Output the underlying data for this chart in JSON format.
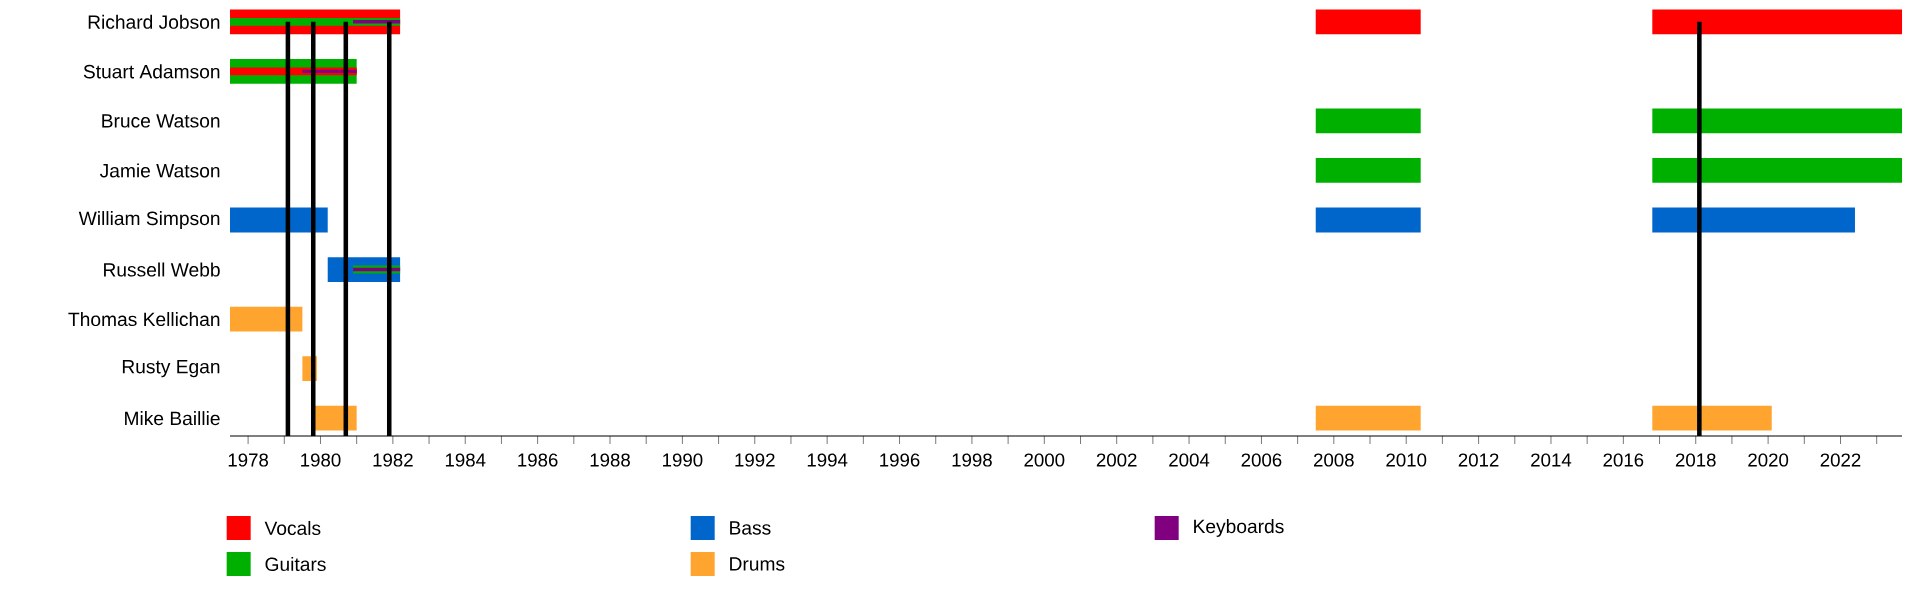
{
  "chart_data": {
    "type": "bar",
    "orientation": "horizontal",
    "legend": "bottom",
    "grid": false,
    "categories": [
      "Richard Jobson",
      "Stuart Adamson",
      "Bruce Watson",
      "Jamie Watson",
      "William Simpson",
      "Russell Webb",
      "Thomas Kellichan",
      "Rusty Egan",
      "Mike Baillie"
    ],
    "xlim": [
      1977.5,
      2023.7
    ],
    "xticks": [
      1978,
      {
        "value": 1979,
        "label": null
      },
      1980,
      {
        "value": 1981,
        "label": null
      },
      1982,
      {
        "value": 1983,
        "label": null
      },
      1984,
      {
        "value": 1985,
        "label": null
      },
      1986,
      {
        "value": 1987,
        "label": null
      },
      1988,
      {
        "value": 1989,
        "label": null
      },
      1990,
      {
        "value": 1991,
        "label": null
      },
      1992,
      {
        "value": 1993,
        "label": null
      },
      1994,
      {
        "value": 1995,
        "label": null
      },
      1996,
      {
        "value": 1997,
        "label": null
      },
      1998,
      {
        "value": 1999,
        "label": null
      },
      2000,
      {
        "value": 2001,
        "label": null
      },
      2002,
      {
        "value": 2003,
        "label": null
      },
      2004,
      {
        "value": 2005,
        "label": null
      },
      2006,
      {
        "value": 2007,
        "label": null
      },
      2008,
      {
        "value": 2009,
        "label": null
      },
      2010,
      {
        "value": 2011,
        "label": null
      },
      2012,
      {
        "value": 2013,
        "label": null
      },
      2014,
      {
        "value": 2015,
        "label": null
      },
      2016,
      {
        "value": 2017,
        "label": null
      },
      2018,
      {
        "value": 2019,
        "label": null
      },
      2020,
      {
        "value": 2021,
        "label": null
      },
      2022,
      {
        "value": 2023,
        "label": null
      }
    ],
    "series": [
      {
        "name": "Vocals",
        "color": "#ff0000",
        "base": [
          1977.5,
          null,
          null,
          null,
          null,
          null,
          null,
          null,
          null
        ],
        "values": [
          4.7,
          null,
          null,
          null,
          null,
          null,
          null,
          null,
          null
        ]
      },
      {
        "name": "Guitars",
        "color": "#00b000",
        "base": [
          null,
          1977.5,
          null,
          null,
          null,
          null,
          null,
          null,
          null
        ],
        "values": [
          null,
          3.5,
          null,
          null,
          null,
          null,
          null,
          null,
          null
        ]
      },
      {
        "name": "Bass",
        "color": "#0066cc",
        "base": [
          null,
          null,
          null,
          null,
          1977.5,
          1980.2,
          null,
          null,
          null
        ],
        "values": [
          null,
          null,
          null,
          null,
          2.7,
          2.0,
          null,
          null,
          null
        ]
      },
      {
        "name": "Drums",
        "color": "#ffa52f",
        "base": [
          null,
          null,
          null,
          null,
          null,
          null,
          1977.5,
          1979.5,
          1979.8
        ],
        "values": [
          null,
          null,
          null,
          null,
          null,
          null,
          2.0,
          0.4,
          1.2
        ]
      },
      {
        "color": "#00b000",
        "base": [
          1977.5,
          null,
          null,
          null,
          null,
          1980.9,
          null,
          null,
          null
        ],
        "values": [
          4.7,
          null,
          null,
          null,
          null,
          1.3,
          null,
          null,
          null
        ]
      },
      {
        "color": "#ff0000",
        "base": [
          null,
          1977.5,
          null,
          null,
          null,
          null,
          null,
          null,
          null
        ],
        "values": [
          null,
          3.5,
          null,
          null,
          null,
          null,
          null,
          null,
          null
        ]
      },
      {
        "name": "Keyboards",
        "color": "#800080",
        "base": [
          1980.9,
          1979.5,
          null,
          null,
          null,
          1980.9,
          null,
          null,
          null
        ],
        "values": [
          1.3,
          1.5,
          null,
          null,
          null,
          1.3,
          null,
          null,
          null
        ]
      },
      {
        "color": "#ff0000",
        "base": [
          2007.5,
          null,
          null,
          null,
          null,
          null,
          null,
          null,
          null
        ],
        "values": [
          2.9,
          null,
          null,
          null,
          null,
          null,
          null,
          null,
          null
        ]
      },
      {
        "color": "#00b000",
        "base": [
          null,
          null,
          2007.5,
          2007.5,
          null,
          null,
          null,
          null,
          null
        ],
        "values": [
          null,
          null,
          2.9,
          2.9,
          null,
          null,
          null,
          null,
          null
        ]
      },
      {
        "color": "#0066cc",
        "base": [
          null,
          null,
          null,
          null,
          2007.5,
          null,
          null,
          null,
          null
        ],
        "values": [
          null,
          null,
          null,
          null,
          2.9,
          null,
          null,
          null,
          null
        ]
      },
      {
        "color": "#ffa52f",
        "base": [
          null,
          null,
          null,
          null,
          null,
          null,
          null,
          null,
          2007.5
        ],
        "values": [
          null,
          null,
          null,
          null,
          null,
          null,
          null,
          null,
          2.9
        ]
      },
      {
        "color": "#ff0000",
        "base": [
          2016.8,
          null,
          null,
          null,
          null,
          null,
          null,
          null,
          null
        ],
        "values": [
          6.9,
          null,
          null,
          null,
          null,
          null,
          null,
          null,
          null
        ]
      },
      {
        "color": "#00b000",
        "base": [
          null,
          null,
          2016.8,
          2016.8,
          null,
          null,
          null,
          null,
          null
        ],
        "values": [
          null,
          null,
          6.9,
          6.9,
          null,
          null,
          null,
          null,
          null
        ]
      },
      {
        "color": "#0066cc",
        "base": [
          null,
          null,
          null,
          null,
          2016.8,
          null,
          null,
          null,
          null
        ],
        "values": [
          null,
          null,
          null,
          null,
          5.6,
          null,
          null,
          null,
          null
        ]
      },
      {
        "color": "#ffa52f",
        "base": [
          null,
          null,
          null,
          null,
          null,
          null,
          null,
          null,
          2016.8
        ],
        "values": [
          null,
          null,
          null,
          null,
          null,
          null,
          null,
          null,
          3.3
        ]
      }
    ],
    "ref_lines": [
      {
        "axis": "x",
        "value": 1979.1,
        "color": "#000000"
      },
      {
        "axis": "x",
        "value": 1979.8,
        "color": "#000000"
      },
      {
        "axis": "x",
        "value": 1980.7,
        "color": "#000000"
      },
      {
        "axis": "x",
        "value": 1981.9,
        "color": "#000000"
      },
      {
        "axis": "x",
        "value": 2018.1,
        "color": "#000000"
      }
    ]
  }
}
